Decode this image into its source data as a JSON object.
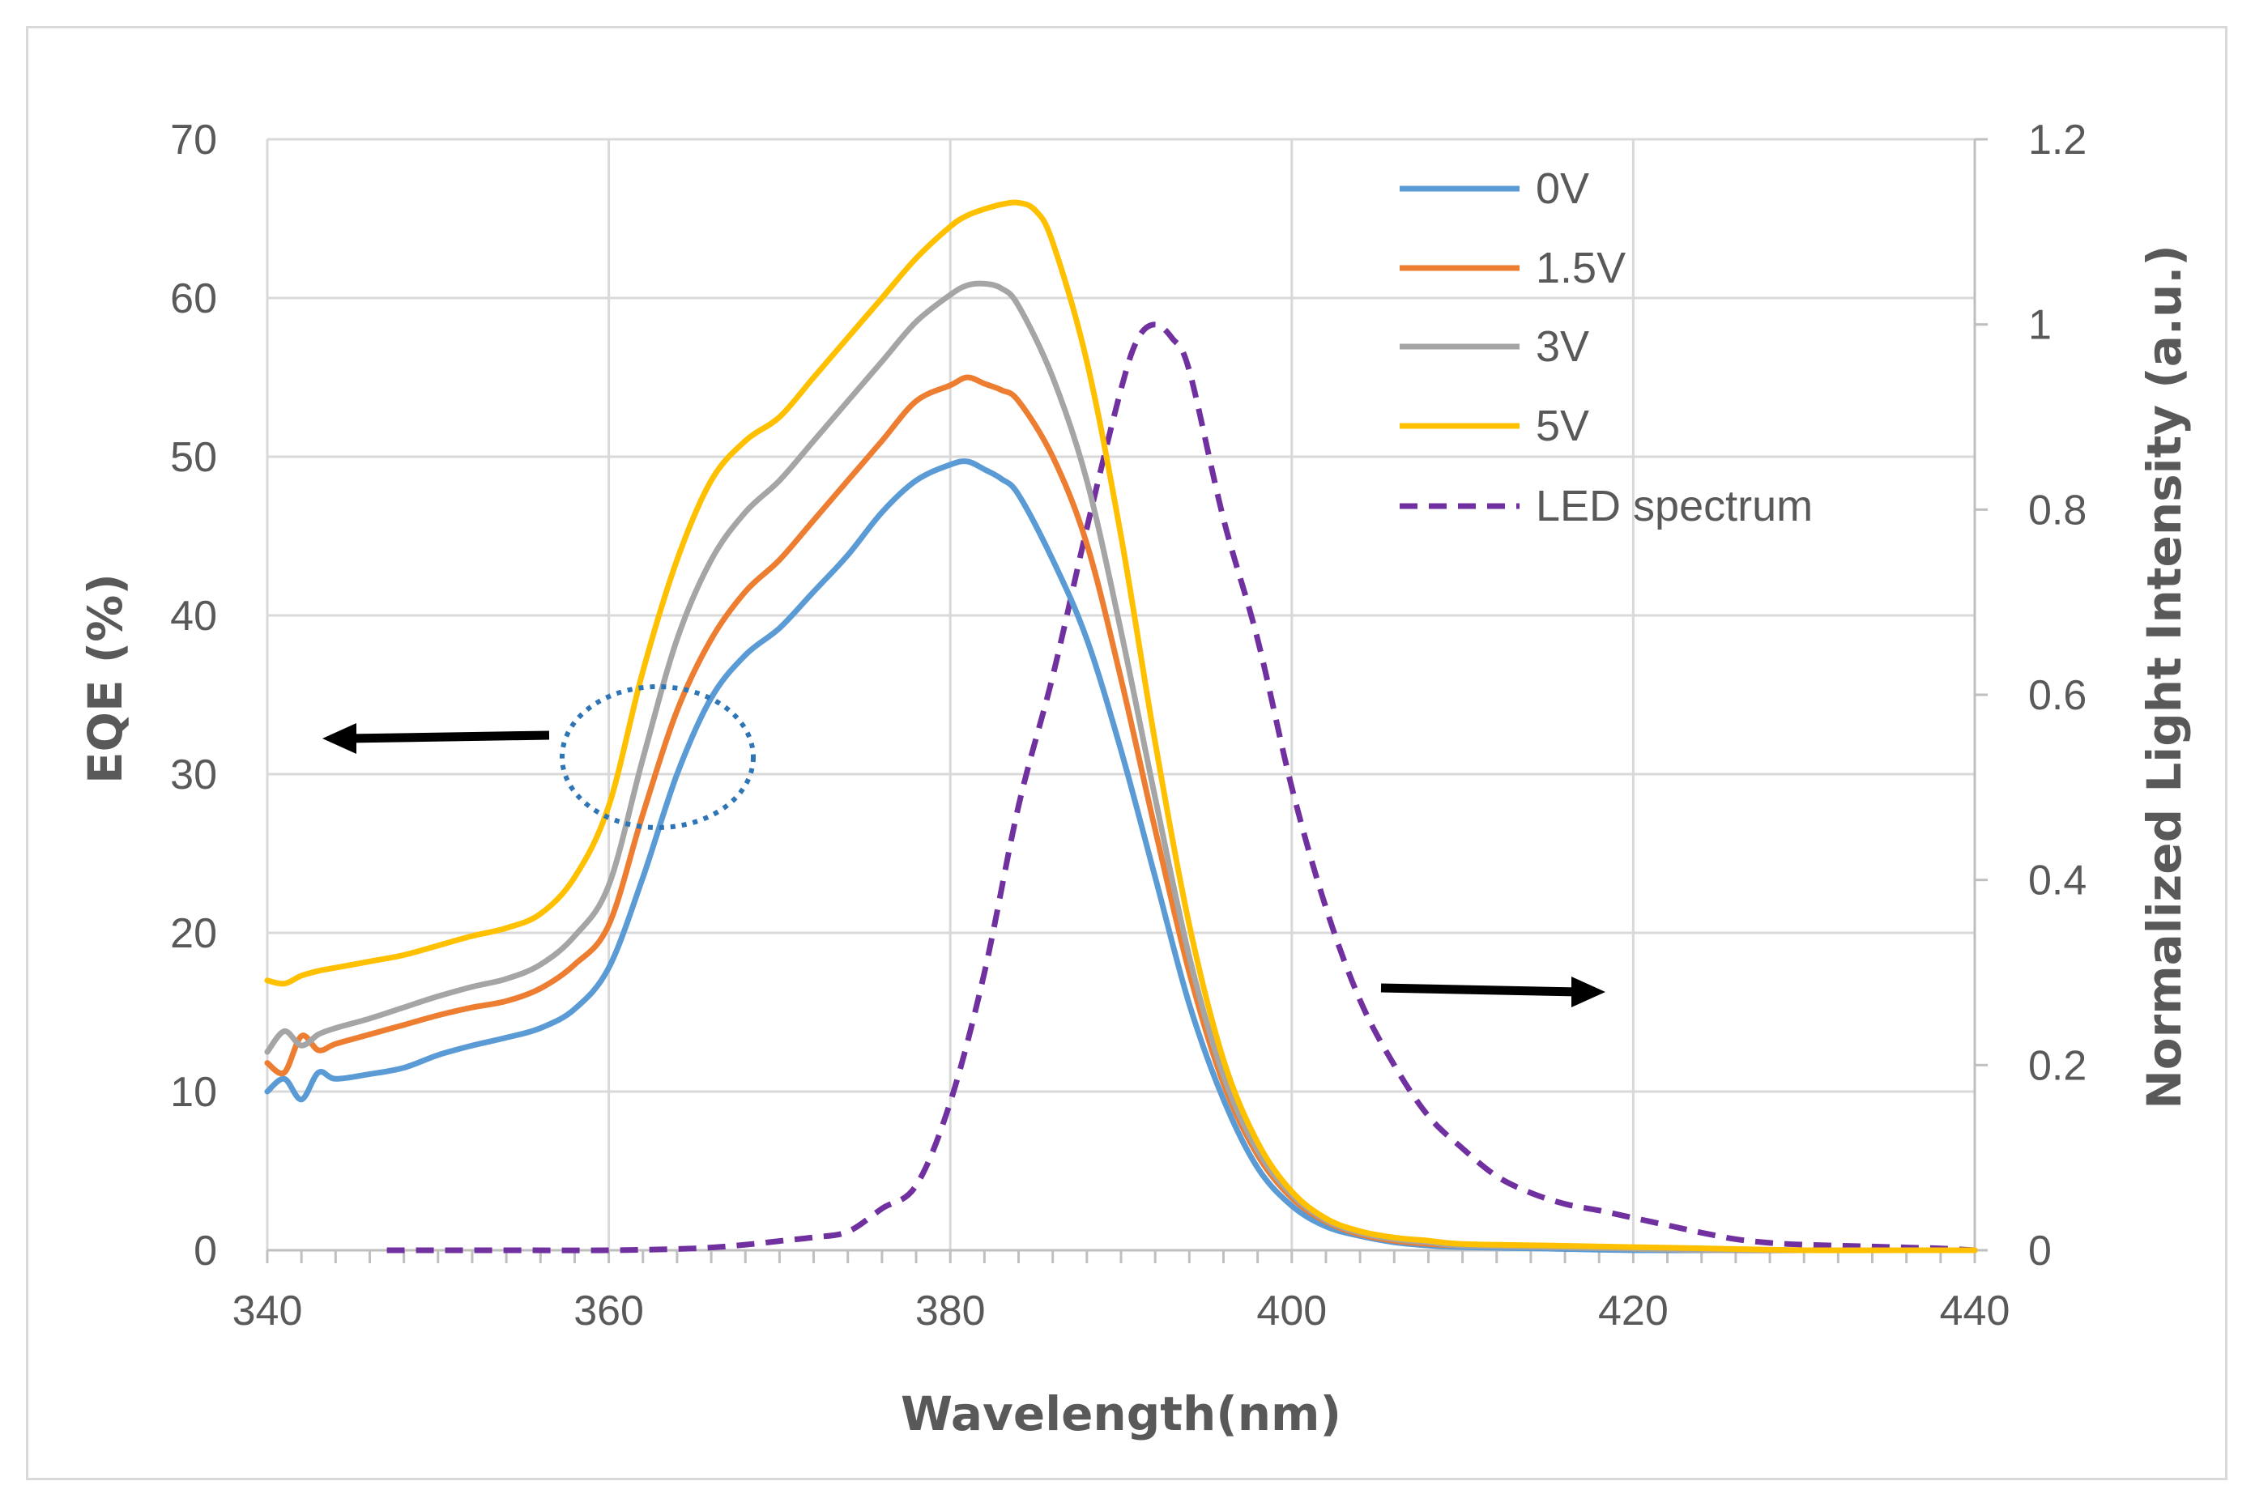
{
  "chart_data": {
    "type": "line",
    "xlabel": "Wavelength(nm)",
    "ylabel": "EQE (%)",
    "y2label": "Normalized Light Intensity (a.u.)",
    "xlim": [
      340,
      440
    ],
    "ylim": [
      0,
      70
    ],
    "y2lim": [
      0,
      1.2
    ],
    "x_ticks": [
      340,
      360,
      380,
      400,
      420,
      440
    ],
    "y_ticks": [
      0,
      10,
      20,
      30,
      40,
      50,
      60,
      70
    ],
    "y2_ticks": [
      "0",
      "0.2",
      "0.4",
      "0.6",
      "0.8",
      "1",
      "1.2"
    ],
    "grid": true,
    "legend_position": "top-right",
    "series": [
      {
        "name": "0V",
        "axis": "left",
        "color": "#5b9bd5",
        "dash": "solid",
        "x": [
          340,
          341,
          342,
          343,
          344,
          346,
          348,
          350,
          352,
          354,
          356,
          358,
          360,
          362,
          364,
          366,
          368,
          370,
          372,
          374,
          376,
          378,
          380,
          381,
          382,
          383,
          384,
          386,
          388,
          390,
          392,
          394,
          396,
          398,
          400,
          402,
          404,
          406,
          408,
          410,
          415,
          420,
          425,
          430,
          435,
          440
        ],
        "y": [
          10,
          10.8,
          9.5,
          11.2,
          10.8,
          11.1,
          11.5,
          12.3,
          12.9,
          13.4,
          14.0,
          15.2,
          17.8,
          23.5,
          30.0,
          34.8,
          37.5,
          39.2,
          41.5,
          43.8,
          46.5,
          48.5,
          49.5,
          49.7,
          49.2,
          48.6,
          47.6,
          43.5,
          38.5,
          31.5,
          23.5,
          15.5,
          9.5,
          5.2,
          2.8,
          1.5,
          0.9,
          0.5,
          0.3,
          0.2,
          0.1,
          0,
          0,
          0,
          0,
          0
        ]
      },
      {
        "name": "1.5V",
        "axis": "left",
        "color": "#ed7d31",
        "dash": "solid",
        "x": [
          340,
          341,
          342,
          343,
          344,
          346,
          348,
          350,
          352,
          354,
          356,
          358,
          360,
          362,
          364,
          366,
          368,
          370,
          372,
          374,
          376,
          378,
          380,
          381,
          382,
          383,
          384,
          386,
          388,
          390,
          392,
          394,
          396,
          398,
          400,
          402,
          404,
          406,
          408,
          410,
          415,
          420,
          425,
          430,
          435,
          440
        ],
        "y": [
          11.8,
          11.2,
          13.5,
          12.6,
          13.0,
          13.6,
          14.2,
          14.8,
          15.3,
          15.7,
          16.5,
          18.0,
          20.5,
          27.5,
          34.0,
          38.5,
          41.5,
          43.5,
          46.0,
          48.5,
          51.0,
          53.5,
          54.5,
          55.0,
          54.6,
          54.2,
          53.5,
          50.0,
          44.5,
          36.0,
          26.5,
          17.5,
          10.5,
          6.0,
          3.3,
          1.8,
          1.0,
          0.6,
          0.4,
          0.3,
          0.2,
          0.1,
          0,
          0,
          0,
          0
        ]
      },
      {
        "name": "3V",
        "axis": "left",
        "color": "#a5a5a5",
        "dash": "solid",
        "x": [
          340,
          341,
          342,
          343,
          344,
          346,
          348,
          350,
          352,
          354,
          356,
          358,
          360,
          362,
          364,
          366,
          368,
          370,
          372,
          374,
          376,
          378,
          380,
          381,
          382,
          383,
          384,
          386,
          388,
          390,
          392,
          394,
          396,
          398,
          400,
          402,
          404,
          406,
          408,
          410,
          415,
          420,
          425,
          430,
          435,
          440
        ],
        "y": [
          12.5,
          13.8,
          12.9,
          13.6,
          14.0,
          14.6,
          15.3,
          16.0,
          16.6,
          17.1,
          18.0,
          19.8,
          23.0,
          31.0,
          38.5,
          43.5,
          46.5,
          48.5,
          51.0,
          53.5,
          56.0,
          58.5,
          60.2,
          60.8,
          60.9,
          60.6,
          59.5,
          55.0,
          48.5,
          39.0,
          28.5,
          18.5,
          11.0,
          6.3,
          3.5,
          1.9,
          1.1,
          0.7,
          0.5,
          0.3,
          0.2,
          0.1,
          0,
          0,
          0,
          0
        ]
      },
      {
        "name": "5V",
        "axis": "left",
        "color": "#ffc000",
        "dash": "solid",
        "x": [
          340,
          341,
          342,
          343,
          344,
          346,
          348,
          350,
          352,
          354,
          356,
          358,
          360,
          362,
          364,
          366,
          368,
          370,
          372,
          374,
          376,
          378,
          380,
          381,
          382,
          383,
          384,
          385,
          386,
          388,
          390,
          392,
          394,
          396,
          398,
          400,
          402,
          404,
          406,
          408,
          410,
          415,
          420,
          425,
          430,
          435,
          440
        ],
        "y": [
          17.0,
          16.8,
          17.3,
          17.6,
          17.8,
          18.2,
          18.6,
          19.2,
          19.8,
          20.3,
          21.2,
          23.5,
          28.0,
          36.5,
          43.5,
          48.5,
          51.0,
          52.5,
          55.0,
          57.5,
          60.0,
          62.5,
          64.5,
          65.2,
          65.6,
          65.9,
          66.0,
          65.5,
          63.5,
          56.0,
          45.0,
          32.0,
          20.5,
          12.0,
          6.8,
          3.7,
          2.0,
          1.2,
          0.8,
          0.6,
          0.4,
          0.3,
          0.2,
          0.1,
          0,
          0,
          0
        ]
      },
      {
        "name": "LED spectrum",
        "axis": "right",
        "color": "#7030a0",
        "dash": "dashed",
        "x": [
          347,
          350,
          355,
          360,
          365,
          368,
          370,
          372,
          374,
          376,
          378,
          380,
          382,
          384,
          386,
          388,
          390,
          391,
          392,
          393,
          394,
          396,
          398,
          400,
          402,
          404,
          406,
          408,
          410,
          412,
          414,
          416,
          418,
          420,
          422,
          424,
          426,
          428,
          430,
          432,
          434,
          436,
          438,
          440
        ],
        "y": [
          0,
          0,
          0,
          0,
          0.002,
          0.006,
          0.01,
          0.014,
          0.02,
          0.045,
          0.07,
          0.16,
          0.3,
          0.48,
          0.62,
          0.78,
          0.93,
          0.985,
          1.0,
          0.985,
          0.95,
          0.79,
          0.66,
          0.5,
          0.37,
          0.27,
          0.2,
          0.145,
          0.11,
          0.08,
          0.062,
          0.05,
          0.043,
          0.035,
          0.027,
          0.019,
          0.012,
          0.008,
          0.006,
          0.005,
          0.004,
          0.003,
          0.002,
          0
        ]
      }
    ]
  }
}
